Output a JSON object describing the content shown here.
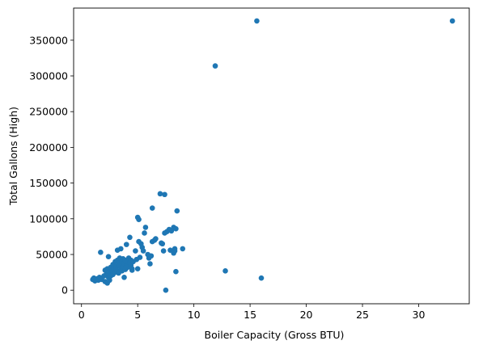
{
  "chart_data": {
    "type": "scatter",
    "title": "",
    "xlabel": "Boiler Capacity (Gross  BTU)",
    "ylabel": "Total Gallons (High)",
    "xlim": [
      -0.7,
      34.5
    ],
    "ylim": [
      -19000,
      395000
    ],
    "xticks": [
      0,
      5,
      10,
      15,
      20,
      25,
      30
    ],
    "yticks": [
      0,
      50000,
      100000,
      150000,
      200000,
      250000,
      300000,
      350000
    ],
    "grid": false,
    "color": "#1f77b4",
    "points": [
      [
        1.0,
        15000
      ],
      [
        1.1,
        17000
      ],
      [
        1.2,
        13000
      ],
      [
        1.4,
        16000
      ],
      [
        1.5,
        14000
      ],
      [
        1.6,
        18000
      ],
      [
        1.7,
        53000
      ],
      [
        1.8,
        15000
      ],
      [
        2.0,
        20000
      ],
      [
        2.1,
        28000
      ],
      [
        2.1,
        12000
      ],
      [
        2.2,
        22000
      ],
      [
        2.3,
        10000
      ],
      [
        2.3,
        30000
      ],
      [
        2.4,
        47000
      ],
      [
        2.4,
        18000
      ],
      [
        2.5,
        25000
      ],
      [
        2.5,
        14000
      ],
      [
        2.6,
        32000
      ],
      [
        2.6,
        20000
      ],
      [
        2.7,
        27000
      ],
      [
        2.8,
        36000
      ],
      [
        2.8,
        22000
      ],
      [
        2.9,
        30000
      ],
      [
        3.0,
        40000
      ],
      [
        3.0,
        25000
      ],
      [
        3.1,
        33000
      ],
      [
        3.1,
        28000
      ],
      [
        3.2,
        42000
      ],
      [
        3.2,
        56000
      ],
      [
        3.3,
        38000
      ],
      [
        3.3,
        24000
      ],
      [
        3.4,
        35000
      ],
      [
        3.4,
        45000
      ],
      [
        3.5,
        30000
      ],
      [
        3.5,
        58000
      ],
      [
        3.6,
        40000
      ],
      [
        3.6,
        27000
      ],
      [
        3.7,
        33000
      ],
      [
        3.7,
        44000
      ],
      [
        3.8,
        37000
      ],
      [
        3.8,
        18000
      ],
      [
        3.9,
        42000
      ],
      [
        3.9,
        29000
      ],
      [
        4.0,
        36000
      ],
      [
        4.0,
        64000
      ],
      [
        4.1,
        40000
      ],
      [
        4.1,
        32000
      ],
      [
        4.2,
        45000
      ],
      [
        4.3,
        38000
      ],
      [
        4.3,
        74000
      ],
      [
        4.4,
        42000
      ],
      [
        4.4,
        35000
      ],
      [
        4.5,
        30000
      ],
      [
        4.5,
        28000
      ],
      [
        4.6,
        40000
      ],
      [
        4.8,
        55000
      ],
      [
        4.9,
        43000
      ],
      [
        5.0,
        102000
      ],
      [
        5.0,
        30000
      ],
      [
        5.1,
        99000
      ],
      [
        5.1,
        68000
      ],
      [
        5.2,
        46000
      ],
      [
        5.3,
        65000
      ],
      [
        5.4,
        60000
      ],
      [
        5.5,
        55000
      ],
      [
        5.6,
        80000
      ],
      [
        5.7,
        88000
      ],
      [
        5.9,
        50000
      ],
      [
        6.0,
        45000
      ],
      [
        6.1,
        37000
      ],
      [
        6.2,
        48000
      ],
      [
        6.3,
        115000
      ],
      [
        6.3,
        68000
      ],
      [
        6.5,
        70000
      ],
      [
        6.6,
        72000
      ],
      [
        7.0,
        135000
      ],
      [
        7.1,
        66000
      ],
      [
        7.2,
        65000
      ],
      [
        7.3,
        55000
      ],
      [
        7.4,
        134000
      ],
      [
        7.4,
        80000
      ],
      [
        7.5,
        0
      ],
      [
        7.6,
        82000
      ],
      [
        7.8,
        85000
      ],
      [
        7.9,
        56000
      ],
      [
        8.0,
        83000
      ],
      [
        8.2,
        88000
      ],
      [
        8.2,
        52000
      ],
      [
        8.3,
        55000
      ],
      [
        8.3,
        58000
      ],
      [
        8.4,
        26000
      ],
      [
        8.4,
        86000
      ],
      [
        8.5,
        111000
      ],
      [
        9.0,
        58000
      ],
      [
        11.9,
        314000
      ],
      [
        12.8,
        27000
      ],
      [
        15.6,
        377000
      ],
      [
        16.0,
        17000
      ],
      [
        33.0,
        377000
      ]
    ]
  }
}
